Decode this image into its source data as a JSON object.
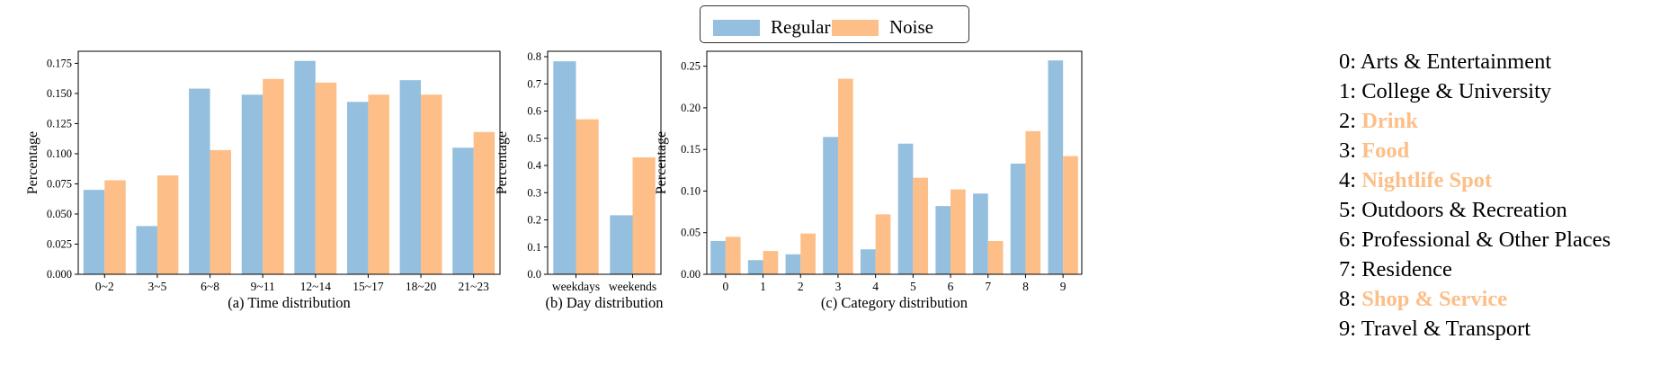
{
  "legend": {
    "regular": "Regular",
    "noise": "Noise"
  },
  "colors": {
    "regular": "#94BFDE",
    "noise": "#FDBE87"
  },
  "category_legend": [
    {
      "index": "0:",
      "name": "Arts & Entertainment",
      "highlight": false
    },
    {
      "index": "1:",
      "name": "College & University",
      "highlight": false
    },
    {
      "index": "2:",
      "name": "Drink",
      "highlight": true
    },
    {
      "index": "3:",
      "name": "Food",
      "highlight": true
    },
    {
      "index": "4:",
      "name": "Nightlife Spot",
      "highlight": true
    },
    {
      "index": "5:",
      "name": "Outdoors & Recreation",
      "highlight": false
    },
    {
      "index": "6:",
      "name": "Professional & Other Places",
      "highlight": false
    },
    {
      "index": "7:",
      "name": "Residence",
      "highlight": false
    },
    {
      "index": "8:",
      "name": "Shop & Service",
      "highlight": true
    },
    {
      "index": "9:",
      "name": "Travel & Transport",
      "highlight": false
    }
  ],
  "chart_data": [
    {
      "type": "bar",
      "caption": "(a) Time distribution",
      "ylabel": "Percentage",
      "categories": [
        "0~2",
        "3~5",
        "6~8",
        "9~11",
        "12~14",
        "15~17",
        "18~20",
        "21~23"
      ],
      "ylim": [
        0,
        0.185
      ],
      "yticks": [
        0,
        0.025,
        0.05,
        0.075,
        0.1,
        0.125,
        0.15,
        0.175
      ],
      "ytick_labels": [
        "0.000",
        "0.025",
        "0.050",
        "0.075",
        "0.100",
        "0.125",
        "0.150",
        "0.175"
      ],
      "series": [
        {
          "name": "Regular",
          "values": [
            0.07,
            0.04,
            0.154,
            0.149,
            0.177,
            0.143,
            0.161,
            0.105
          ]
        },
        {
          "name": "Noise",
          "values": [
            0.078,
            0.082,
            0.103,
            0.162,
            0.159,
            0.149,
            0.149,
            0.118
          ]
        }
      ]
    },
    {
      "type": "bar",
      "caption": "(b) Day distribution",
      "ylabel": "Percentage",
      "categories": [
        "weekdays",
        "weekends"
      ],
      "ylim": [
        0,
        0.82
      ],
      "yticks": [
        0,
        0.1,
        0.2,
        0.3,
        0.4,
        0.5,
        0.6,
        0.7,
        0.8
      ],
      "ytick_labels": [
        "0.0",
        "0.1",
        "0.2",
        "0.3",
        "0.4",
        "0.5",
        "0.6",
        "0.7",
        "0.8"
      ],
      "series": [
        {
          "name": "Regular",
          "values": [
            0.783,
            0.217
          ]
        },
        {
          "name": "Noise",
          "values": [
            0.57,
            0.43
          ]
        }
      ]
    },
    {
      "type": "bar",
      "caption": "(c) Category distribution",
      "ylabel": "Percentage",
      "categories": [
        "0",
        "1",
        "2",
        "3",
        "4",
        "5",
        "6",
        "7",
        "8",
        "9"
      ],
      "ylim": [
        0,
        0.268
      ],
      "yticks": [
        0,
        0.05,
        0.1,
        0.15,
        0.2,
        0.25
      ],
      "ytick_labels": [
        "0.00",
        "0.05",
        "0.10",
        "0.15",
        "0.20",
        "0.25"
      ],
      "series": [
        {
          "name": "Regular",
          "values": [
            0.04,
            0.017,
            0.024,
            0.165,
            0.03,
            0.157,
            0.082,
            0.097,
            0.133,
            0.257
          ]
        },
        {
          "name": "Noise",
          "values": [
            0.045,
            0.028,
            0.049,
            0.235,
            0.072,
            0.116,
            0.102,
            0.04,
            0.172,
            0.142
          ]
        }
      ]
    }
  ]
}
